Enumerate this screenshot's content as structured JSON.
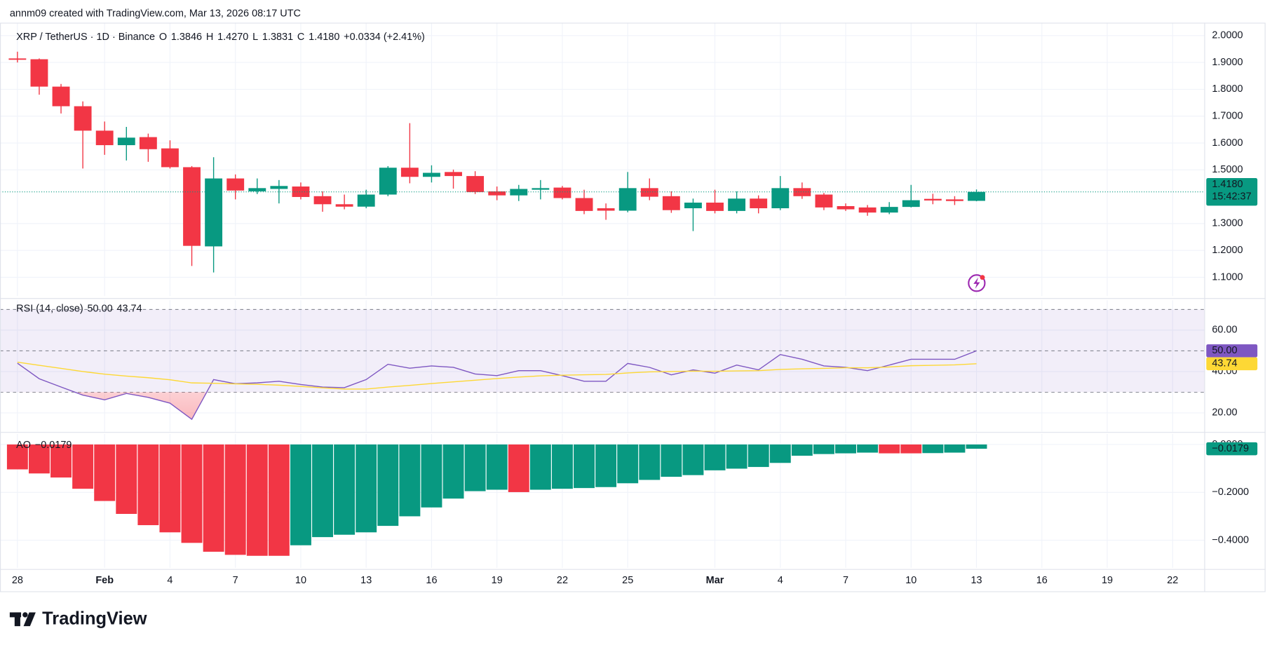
{
  "header": {
    "attribution": "annm09 created with TradingView.com, Mar 13, 2026 08:17 UTC"
  },
  "footer": {
    "brand": "TradingView"
  },
  "chart_data": [
    {
      "type": "candlestick",
      "title": "XRP / TetherUS · 1D · Binance",
      "ohlc_legend": [
        {
          "key": "O",
          "value": "1.3846"
        },
        {
          "key": "H",
          "value": "1.4270"
        },
        {
          "key": "L",
          "value": "1.3831"
        },
        {
          "key": "C",
          "value": "1.4180"
        }
      ],
      "change": "+0.0334 (+2.41%)",
      "x": [
        0,
        1,
        2,
        3,
        4,
        5,
        6,
        7,
        8,
        9,
        10,
        11,
        12,
        13,
        14,
        15,
        16,
        17,
        18,
        19,
        20,
        21,
        22,
        23,
        24,
        25,
        26,
        27,
        28,
        29,
        30,
        31,
        32,
        33,
        34,
        35,
        36,
        37,
        38,
        39,
        40,
        41,
        42,
        43,
        44
      ],
      "open": [
        1.915,
        1.912,
        1.81,
        1.737,
        1.646,
        1.592,
        1.622,
        1.58,
        1.51,
        1.215,
        1.468,
        1.42,
        1.429,
        1.438,
        1.402,
        1.372,
        1.363,
        1.408,
        1.508,
        1.474,
        1.492,
        1.477,
        1.42,
        1.405,
        1.426,
        1.434,
        1.395,
        1.357,
        1.348,
        1.432,
        1.402,
        1.357,
        1.378,
        1.347,
        1.393,
        1.357,
        1.432,
        1.408,
        1.365,
        1.36,
        1.341,
        1.362,
        1.392,
        1.39,
        1.3846
      ],
      "high": [
        1.94,
        1.915,
        1.82,
        1.755,
        1.68,
        1.66,
        1.635,
        1.61,
        1.514,
        1.547,
        1.483,
        1.468,
        1.462,
        1.453,
        1.42,
        1.408,
        1.426,
        1.514,
        1.674,
        1.517,
        1.501,
        1.495,
        1.438,
        1.444,
        1.462,
        1.44,
        1.426,
        1.375,
        1.492,
        1.468,
        1.42,
        1.393,
        1.426,
        1.42,
        1.405,
        1.477,
        1.453,
        1.414,
        1.375,
        1.369,
        1.38,
        1.444,
        1.411,
        1.402,
        1.427
      ],
      "low": [
        1.9,
        1.78,
        1.71,
        1.505,
        1.556,
        1.535,
        1.53,
        1.505,
        1.142,
        1.118,
        1.39,
        1.41,
        1.375,
        1.39,
        1.344,
        1.353,
        1.357,
        1.402,
        1.45,
        1.453,
        1.43,
        1.41,
        1.387,
        1.384,
        1.39,
        1.39,
        1.335,
        1.314,
        1.342,
        1.387,
        1.34,
        1.272,
        1.338,
        1.338,
        1.338,
        1.35,
        1.392,
        1.35,
        1.347,
        1.329,
        1.335,
        1.36,
        1.372,
        1.369,
        1.3831
      ],
      "close": [
        1.91,
        1.81,
        1.737,
        1.646,
        1.592,
        1.62,
        1.577,
        1.51,
        1.217,
        1.468,
        1.423,
        1.432,
        1.44,
        1.399,
        1.372,
        1.363,
        1.408,
        1.508,
        1.474,
        1.489,
        1.477,
        1.417,
        1.405,
        1.429,
        1.432,
        1.395,
        1.347,
        1.348,
        1.432,
        1.4,
        1.35,
        1.378,
        1.347,
        1.393,
        1.357,
        1.432,
        1.402,
        1.36,
        1.353,
        1.341,
        1.362,
        1.387,
        1.386,
        1.384,
        1.418
      ],
      "up_color": "#089981",
      "down_color": "#f23645",
      "last_price": {
        "label": "1.4180",
        "countdown": "15:42:37"
      },
      "xlim": [
        -0.8,
        54.47
      ],
      "xticks": [
        {
          "value": 0,
          "label": "28"
        },
        {
          "value": 4,
          "label": "Feb"
        },
        {
          "value": 7,
          "label": "4"
        },
        {
          "value": 10,
          "label": "7"
        },
        {
          "value": 13,
          "label": "10"
        },
        {
          "value": 16,
          "label": "13"
        },
        {
          "value": 19,
          "label": "16"
        },
        {
          "value": 22,
          "label": "19"
        },
        {
          "value": 25,
          "label": "22"
        },
        {
          "value": 28,
          "label": "25"
        },
        {
          "value": 32,
          "label": "Mar"
        },
        {
          "value": 35,
          "label": "4"
        },
        {
          "value": 38,
          "label": "7"
        },
        {
          "value": 41,
          "label": "10"
        },
        {
          "value": 44,
          "label": "13"
        },
        {
          "value": 47,
          "label": "16"
        },
        {
          "value": 50,
          "label": "19"
        },
        {
          "value": 53,
          "label": "22"
        }
      ],
      "ylim": [
        1.03,
        2.048
      ],
      "yticks": [
        {
          "value": 1.1,
          "label": "1.1000"
        },
        {
          "value": 1.2,
          "label": "1.2000"
        },
        {
          "value": 1.3,
          "label": "1.3000"
        },
        {
          "value": 1.5,
          "label": "1.5000"
        },
        {
          "value": 1.6,
          "label": "1.6000"
        },
        {
          "value": 1.7,
          "label": "1.7000"
        },
        {
          "value": 1.8,
          "label": "1.8000"
        },
        {
          "value": 1.9,
          "label": "1.9000"
        },
        {
          "value": 2,
          "label": "2.0000"
        }
      ],
      "grid": true
    },
    {
      "type": "line",
      "title": "RSI (14, close)",
      "x": [
        0,
        1,
        2,
        3,
        4,
        5,
        6,
        7,
        8,
        9,
        10,
        11,
        12,
        13,
        14,
        15,
        16,
        17,
        18,
        19,
        20,
        21,
        22,
        23,
        24,
        25,
        26,
        27,
        28,
        29,
        30,
        31,
        32,
        33,
        34,
        35,
        36,
        37,
        38,
        39,
        40,
        41,
        42,
        43,
        44
      ],
      "series": [
        {
          "color": "#7e57c2",
          "last_label": "50.00",
          "values": [
            44,
            36.5,
            32.5,
            28.6,
            26.3,
            29.4,
            27.5,
            24.7,
            16.9,
            36.1,
            34.1,
            34.5,
            35.3,
            33.7,
            32.5,
            32.2,
            36.1,
            43.5,
            41.6,
            42.7,
            42,
            38.8,
            38,
            40.4,
            40.4,
            38,
            35.3,
            35.3,
            43.9,
            42,
            38.4,
            40.8,
            39.2,
            43.1,
            40.8,
            48.2,
            45.9,
            42.7,
            42,
            40.4,
            43.1,
            45.9,
            45.9,
            45.9,
            50
          ]
        },
        {
          "color": "#fdd835",
          "last_label": "43.74",
          "values": [
            44.5,
            43,
            41.5,
            40,
            38.7,
            37.8,
            37,
            36,
            34.5,
            34.3,
            34,
            33.8,
            33.4,
            32.8,
            32.1,
            31.5,
            31.5,
            32.5,
            33.3,
            34.2,
            35,
            35.8,
            36.6,
            37.3,
            37.9,
            38.2,
            38.4,
            38.6,
            39.3,
            39.8,
            40,
            40.2,
            40.1,
            40.3,
            40.4,
            41,
            41.3,
            41.5,
            41.8,
            41.8,
            42.2,
            42.8,
            43,
            43.2,
            43.74
          ]
        }
      ],
      "bands": {
        "upper": 70,
        "middle": 50,
        "lower": 30
      },
      "xlim": [
        -0.8,
        54.47
      ],
      "ylim": [
        11,
        74.5
      ],
      "yticks": [
        {
          "value": 20,
          "label": "20.00"
        },
        {
          "value": 40,
          "label": "40.00"
        },
        {
          "value": 60,
          "label": "60.00"
        }
      ],
      "grid": true
    },
    {
      "type": "bar",
      "title": "AO",
      "value_label": "−0.0179",
      "x": [
        0,
        1,
        2,
        3,
        4,
        5,
        6,
        7,
        8,
        9,
        10,
        11,
        12,
        13,
        14,
        15,
        16,
        17,
        18,
        19,
        20,
        21,
        22,
        23,
        24,
        25,
        26,
        27,
        28,
        29,
        30,
        31,
        32,
        33,
        34,
        35,
        36,
        37,
        38,
        39,
        40,
        41,
        42,
        43,
        44
      ],
      "values": [
        -0.104,
        -0.121,
        -0.138,
        -0.185,
        -0.236,
        -0.29,
        -0.337,
        -0.367,
        -0.411,
        -0.448,
        -0.461,
        -0.465,
        -0.465,
        -0.421,
        -0.387,
        -0.377,
        -0.367,
        -0.34,
        -0.3,
        -0.263,
        -0.226,
        -0.195,
        -0.189,
        -0.199,
        -0.189,
        -0.185,
        -0.182,
        -0.178,
        -0.162,
        -0.148,
        -0.135,
        -0.128,
        -0.108,
        -0.101,
        -0.094,
        -0.077,
        -0.047,
        -0.04,
        -0.037,
        -0.034,
        -0.037,
        -0.037,
        -0.036,
        -0.034,
        -0.0179
      ],
      "up_color": "#089981",
      "down_color": "#f23645",
      "xlim": [
        -0.8,
        54.47
      ],
      "ylim": [
        -0.515,
        0.044
      ],
      "yticks": [
        {
          "value": -0.4,
          "label": "−0.4000"
        },
        {
          "value": -0.2,
          "label": "−0.2000"
        },
        {
          "value": 0,
          "label": "0.0000"
        }
      ],
      "grid": true
    }
  ]
}
